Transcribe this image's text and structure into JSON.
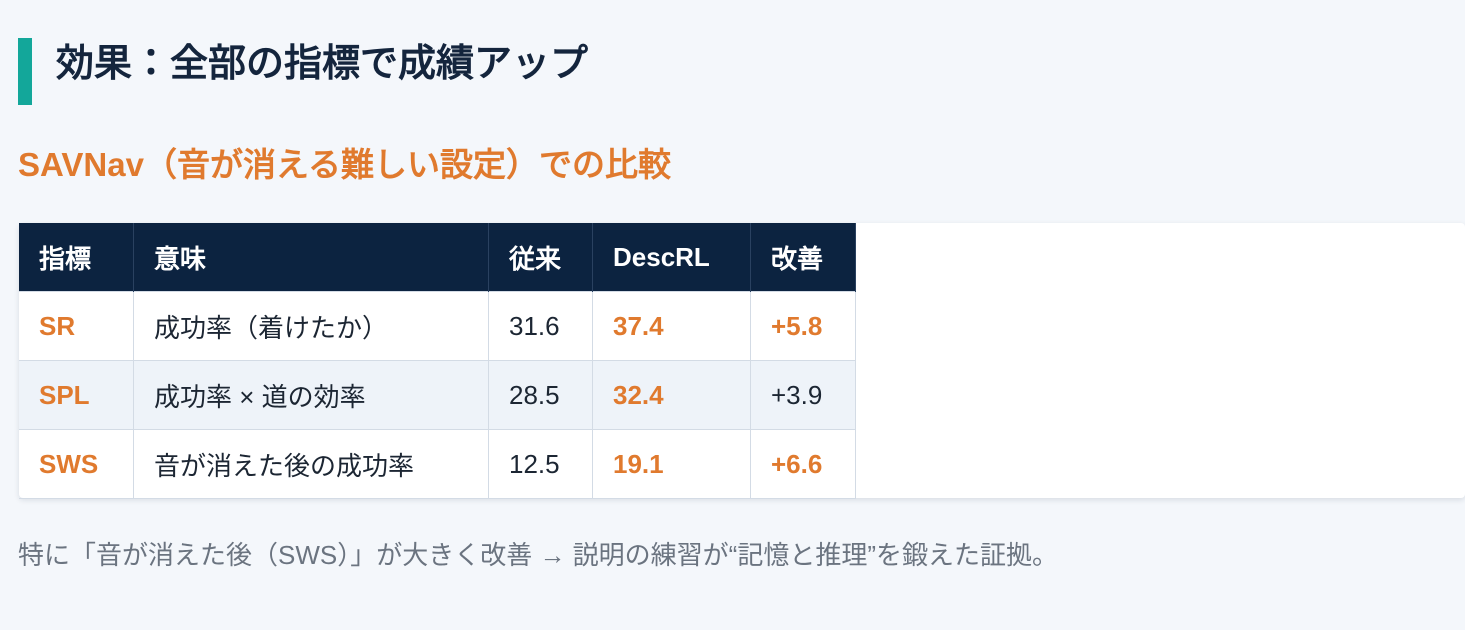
{
  "header": {
    "title": "効果：全部の指標で成績アップ",
    "subtitle": "SAVNav（音が消える難しい設定）での比較"
  },
  "table": {
    "columns": [
      "指標",
      "意味",
      "従来",
      "DescRL",
      "改善"
    ],
    "rows": [
      [
        "SR",
        "成功率（着けたか）",
        "31.6",
        "37.4",
        "+5.8"
      ],
      [
        "SPL",
        "成功率 × 道の効率",
        "28.5",
        "32.4",
        "+3.9"
      ],
      [
        "SWS",
        "音が消えた後の成功率",
        "12.5",
        "19.1",
        "+6.6"
      ]
    ]
  },
  "note": "特に「音が消えた後（SWS）」が大きく改善 → 説明の練習が“記憶と推理”を鍛えた証拠。"
}
